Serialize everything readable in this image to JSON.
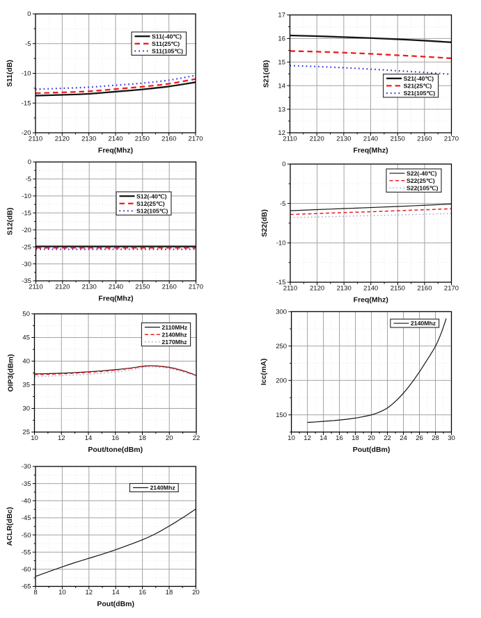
{
  "page": {
    "background": "#ffffff",
    "description": "Grid of seven RF amplifier S-parameter and power measurement charts"
  },
  "colors": {
    "axis": "#000000",
    "text": "#111111",
    "major_grid": "#a2a2a2",
    "minor_grid": "#d6d6d6",
    "legend_border": "#222222",
    "legend_bg": "#ffffff",
    "black": "#141414",
    "red": "#ee1c1c",
    "blue": "#2b2bdd",
    "lightblue": "#9a9ad0"
  },
  "chart_data": [
    {
      "id": "s11",
      "type": "line",
      "xlabel": "Freq(Mhz)",
      "ylabel": "S11(dB)",
      "xlim": [
        2110,
        2170
      ],
      "ylim": [
        -20,
        0
      ],
      "xticks": [
        2110,
        2120,
        2130,
        2140,
        2150,
        2160,
        2170
      ],
      "yticks": [
        0,
        -5,
        -10,
        -15,
        -20
      ],
      "grid": {
        "major": true,
        "minor": true
      },
      "legend": {
        "fx": 0.6,
        "fy": 0.152,
        "rows": 3
      },
      "series": [
        {
          "name": "S11(-40℃)",
          "color": "black",
          "style": "solid",
          "weight": "thick",
          "x": [
            2110,
            2120,
            2130,
            2140,
            2150,
            2160,
            2170
          ],
          "y": [
            -13.75,
            -13.62,
            -13.45,
            -13.08,
            -12.7,
            -12.2,
            -11.5
          ]
        },
        {
          "name": "S11(25℃)",
          "color": "red",
          "style": "dashed",
          "weight": "thick",
          "x": [
            2110,
            2120,
            2130,
            2140,
            2150,
            2160,
            2170
          ],
          "y": [
            -13.35,
            -13.2,
            -13.02,
            -12.65,
            -12.25,
            -11.75,
            -10.95
          ]
        },
        {
          "name": "S11(105℃)",
          "color": "blue",
          "style": "dotted",
          "weight": "thick",
          "x": [
            2110,
            2120,
            2130,
            2140,
            2150,
            2160,
            2170
          ],
          "y": [
            -12.68,
            -12.52,
            -12.33,
            -12.0,
            -11.65,
            -11.15,
            -10.35
          ]
        }
      ]
    },
    {
      "id": "s21",
      "type": "line",
      "xlabel": "Freq(Mhz)",
      "ylabel": "S21(dB)",
      "xlim": [
        2110,
        2170
      ],
      "ylim": [
        12,
        17
      ],
      "xticks": [
        2110,
        2120,
        2130,
        2140,
        2150,
        2160,
        2170
      ],
      "yticks": [
        17,
        16,
        15,
        14,
        13,
        12
      ],
      "grid": {
        "major": true,
        "minor": true
      },
      "legend": {
        "fx": 0.578,
        "fy": 0.502,
        "rows": 3
      },
      "series": [
        {
          "name": "S21(-40℃)",
          "color": "black",
          "style": "solid",
          "weight": "thick",
          "x": [
            2110,
            2120,
            2130,
            2140,
            2150,
            2160,
            2170
          ],
          "y": [
            16.13,
            16.1,
            16.06,
            16.02,
            15.97,
            15.91,
            15.84
          ]
        },
        {
          "name": "S21(25℃)",
          "color": "red",
          "style": "dashed",
          "weight": "thick",
          "x": [
            2110,
            2120,
            2130,
            2140,
            2150,
            2160,
            2170
          ],
          "y": [
            15.47,
            15.44,
            15.4,
            15.35,
            15.29,
            15.23,
            15.16
          ]
        },
        {
          "name": "S21(105℃)",
          "color": "blue",
          "style": "dotted",
          "weight": "thick",
          "x": [
            2110,
            2120,
            2130,
            2140,
            2150,
            2160,
            2170
          ],
          "y": [
            14.85,
            14.81,
            14.76,
            14.7,
            14.63,
            14.56,
            14.48
          ]
        }
      ]
    },
    {
      "id": "s12",
      "type": "line",
      "xlabel": "Freq(Mhz)",
      "ylabel": "S12(dB)",
      "xlim": [
        2110,
        2170
      ],
      "ylim": [
        -35,
        0
      ],
      "xticks": [
        2110,
        2120,
        2130,
        2140,
        2150,
        2160,
        2170
      ],
      "yticks": [
        0,
        -5,
        -10,
        -15,
        -20,
        -25,
        -30,
        -35
      ],
      "grid": {
        "major": true,
        "minor": true
      },
      "legend": {
        "fx": 0.502,
        "fy": 0.251,
        "rows": 3
      },
      "series": [
        {
          "name": "S12(-40℃)",
          "color": "black",
          "style": "solid",
          "weight": "thick",
          "x": [
            2110,
            2120,
            2130,
            2140,
            2150,
            2160,
            2170
          ],
          "y": [
            -24.87,
            -24.87,
            -24.88,
            -24.87,
            -24.87,
            -24.88,
            -24.87
          ]
        },
        {
          "name": "S12(25℃)",
          "color": "red",
          "style": "dashed",
          "weight": "thick",
          "x": [
            2110,
            2120,
            2130,
            2140,
            2150,
            2160,
            2170
          ],
          "y": [
            -25.25,
            -25.25,
            -25.26,
            -25.25,
            -25.25,
            -25.26,
            -25.25
          ]
        },
        {
          "name": "S12(105℃)",
          "color": "blue",
          "style": "dotted",
          "weight": "thick",
          "x": [
            2110,
            2120,
            2130,
            2140,
            2150,
            2160,
            2170
          ],
          "y": [
            -25.7,
            -25.7,
            -25.71,
            -25.7,
            -25.7,
            -25.71,
            -25.7
          ]
        }
      ]
    },
    {
      "id": "s22",
      "type": "line",
      "xlabel": "Freq(Mhz)",
      "ylabel": "S22(dB)",
      "xlim": [
        2110,
        2170
      ],
      "ylim": [
        -15,
        0
      ],
      "xticks": [
        2110,
        2120,
        2130,
        2140,
        2150,
        2160,
        2170
      ],
      "yticks": [
        0,
        -5,
        -10,
        -15
      ],
      "grid": {
        "major": true,
        "minor": true
      },
      "legend": {
        "fx": 0.596,
        "fy": 0.041,
        "rows": 3
      },
      "series": [
        {
          "name": "S22(-40℃)",
          "color": "black",
          "style": "solid",
          "weight": "thin",
          "x": [
            2110,
            2120,
            2130,
            2140,
            2150,
            2160,
            2170
          ],
          "y": [
            -5.92,
            -5.78,
            -5.65,
            -5.52,
            -5.38,
            -5.23,
            -5.07
          ]
        },
        {
          "name": "S22(25℃)",
          "color": "red",
          "style": "dashed",
          "weight": "thin",
          "x": [
            2110,
            2120,
            2130,
            2140,
            2150,
            2160,
            2170
          ],
          "y": [
            -6.4,
            -6.28,
            -6.16,
            -6.05,
            -5.92,
            -5.8,
            -5.67
          ]
        },
        {
          "name": "S22(105℃)",
          "color": "lightblue",
          "style": "dotted",
          "weight": "thin",
          "x": [
            2110,
            2120,
            2130,
            2140,
            2150,
            2160,
            2170
          ],
          "y": [
            -6.8,
            -6.72,
            -6.63,
            -6.55,
            -6.46,
            -6.37,
            -6.28
          ]
        }
      ]
    },
    {
      "id": "oip3",
      "type": "line",
      "xlabel": "Pout/tone(dBm)",
      "ylabel": "OIP3(dBm)",
      "xlim": [
        10,
        22
      ],
      "ylim": [
        25,
        50
      ],
      "xticks": [
        10,
        12,
        14,
        16,
        18,
        20,
        22
      ],
      "yticks": [
        50,
        45,
        40,
        35,
        30,
        25
      ],
      "grid": {
        "major": true,
        "minor": true
      },
      "legend": {
        "fx": 0.662,
        "fy": 0.076,
        "rows": 3
      },
      "series": [
        {
          "name": "2110MHz",
          "color": "black",
          "style": "solid",
          "weight": "thin",
          "x": [
            10,
            11,
            12,
            13,
            14,
            15,
            16,
            17,
            18,
            18.5,
            19,
            20,
            21,
            22
          ],
          "y": [
            37.3,
            37.35,
            37.45,
            37.58,
            37.75,
            37.95,
            38.2,
            38.5,
            38.9,
            39.02,
            39.0,
            38.7,
            38.0,
            37.0
          ]
        },
        {
          "name": "2140Mhz",
          "color": "red",
          "style": "dashed",
          "weight": "thin",
          "x": [
            10,
            11,
            12,
            13,
            14,
            15,
            16,
            17,
            18,
            18.5,
            19,
            20,
            21,
            22
          ],
          "y": [
            37.15,
            37.22,
            37.32,
            37.46,
            37.63,
            37.84,
            38.1,
            38.42,
            38.83,
            38.97,
            38.95,
            38.63,
            37.92,
            36.95
          ]
        },
        {
          "name": "2170Mhz",
          "color": "lightblue",
          "style": "dotted",
          "weight": "thin",
          "x": [
            10,
            11,
            12,
            13,
            14,
            15,
            16,
            17,
            18,
            18.5,
            19,
            20,
            21,
            22
          ],
          "y": [
            36.75,
            36.82,
            36.92,
            37.05,
            37.22,
            37.44,
            37.72,
            38.08,
            38.6,
            38.8,
            38.78,
            38.45,
            37.75,
            36.9
          ]
        }
      ]
    },
    {
      "id": "icc",
      "type": "line",
      "xlabel": "Pout(dBm)",
      "ylabel": "Icc(mA)",
      "xlim": [
        10,
        30
      ],
      "ylim": [
        125,
        300
      ],
      "xticks": [
        10,
        12,
        14,
        16,
        18,
        20,
        22,
        24,
        26,
        28,
        30
      ],
      "yticks": [
        300,
        250,
        200,
        150
      ],
      "grid": {
        "major": true,
        "minor": true
      },
      "legend": {
        "fx": 0.619,
        "fy": 0.062,
        "rows": 1
      },
      "series": [
        {
          "name": "2140Mhz",
          "color": "black",
          "style": "solid",
          "weight": "thin",
          "x": [
            12,
            13,
            14,
            15,
            16,
            17,
            18,
            19,
            20,
            21,
            22,
            23,
            24,
            25,
            26,
            27,
            28,
            28.7,
            29.35
          ],
          "y": [
            139,
            139.7,
            140.5,
            141.4,
            142.4,
            143.7,
            145.3,
            147.4,
            150,
            154,
            160,
            169.5,
            181.5,
            196,
            212.5,
            230.5,
            249.5,
            268,
            290
          ]
        }
      ]
    },
    {
      "id": "aclr",
      "type": "line",
      "xlabel": "Pout(dBm)",
      "ylabel": "ACLR(dBc)",
      "xlim": [
        8,
        20
      ],
      "ylim": [
        -65,
        -30
      ],
      "xticks": [
        8,
        10,
        12,
        14,
        16,
        18,
        20
      ],
      "yticks": [
        -30,
        -35,
        -40,
        -45,
        -50,
        -55,
        -60,
        -65
      ],
      "grid": {
        "major": true,
        "minor": true
      },
      "legend": {
        "fx": 0.588,
        "fy": 0.142,
        "rows": 1
      },
      "series": [
        {
          "name": "2140Mhz",
          "color": "black",
          "style": "solid",
          "weight": "thin",
          "x": [
            8,
            9,
            10,
            11,
            12,
            13,
            14,
            15,
            16,
            17,
            18,
            19,
            20
          ],
          "y": [
            -62.1,
            -60.7,
            -59.3,
            -58.0,
            -56.8,
            -55.6,
            -54.3,
            -52.9,
            -51.4,
            -49.6,
            -47.4,
            -45.0,
            -42.4
          ]
        }
      ]
    }
  ]
}
